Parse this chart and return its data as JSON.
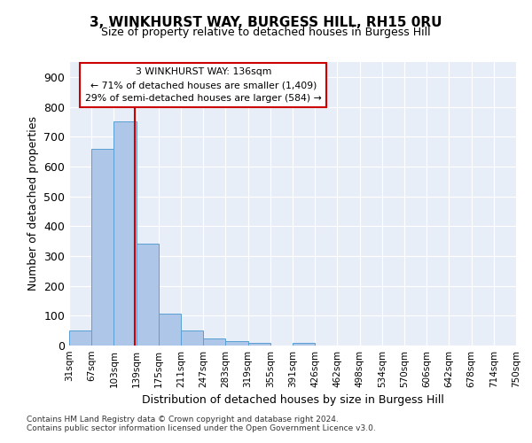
{
  "title": "3, WINKHURST WAY, BURGESS HILL, RH15 0RU",
  "subtitle": "Size of property relative to detached houses in Burgess Hill",
  "xlabel": "Distribution of detached houses by size in Burgess Hill",
  "ylabel": "Number of detached properties",
  "bin_labels": [
    "31sqm",
    "67sqm",
    "103sqm",
    "139sqm",
    "175sqm",
    "211sqm",
    "247sqm",
    "283sqm",
    "319sqm",
    "355sqm",
    "391sqm",
    "426sqm",
    "462sqm",
    "498sqm",
    "534sqm",
    "570sqm",
    "606sqm",
    "642sqm",
    "678sqm",
    "714sqm",
    "750sqm"
  ],
  "bar_values": [
    50,
    660,
    750,
    340,
    107,
    50,
    24,
    15,
    10,
    0,
    8,
    0,
    0,
    0,
    0,
    0,
    0,
    0,
    0,
    0
  ],
  "bar_color": "#aec6e8",
  "bar_edgecolor": "#5a9fd4",
  "vline_color": "#cc0000",
  "annotation_text": "3 WINKHURST WAY: 136sqm\n← 71% of detached houses are smaller (1,409)\n29% of semi-detached houses are larger (584) →",
  "annotation_box_color": "#ffffff",
  "annotation_box_edgecolor": "#cc0000",
  "ylim": [
    0,
    950
  ],
  "yticks": [
    0,
    100,
    200,
    300,
    400,
    500,
    600,
    700,
    800,
    900
  ],
  "footer_line1": "Contains HM Land Registry data © Crown copyright and database right 2024.",
  "footer_line2": "Contains public sector information licensed under the Open Government Licence v3.0.",
  "bg_color": "#e8eef8",
  "fig_bg_color": "#ffffff",
  "grid_color": "#ffffff",
  "num_bins": 20
}
